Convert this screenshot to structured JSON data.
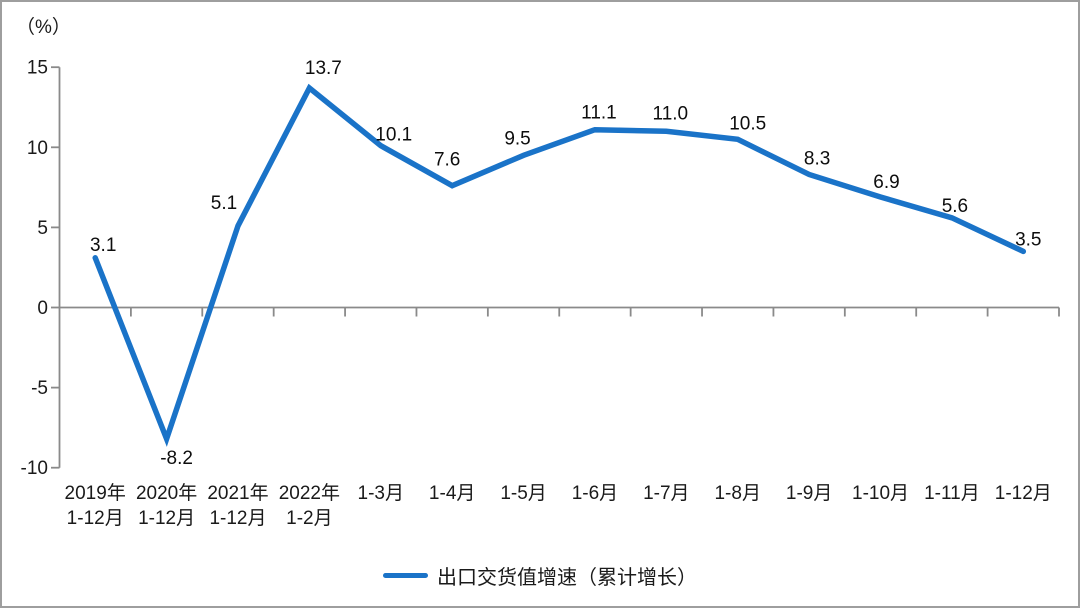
{
  "frame": {
    "background": "#ffffff",
    "border_color": "#9e9e9e"
  },
  "y_axis": {
    "unit_label": "（%）"
  },
  "legend": {
    "label": "出口交货值增速（累计增长）"
  },
  "colors": {
    "line": "#1a73c8",
    "axis": "#8a8a8a",
    "text": "#1a1a1a",
    "data_label": "#0d0d0d"
  },
  "chart_data": {
    "type": "line",
    "title": "",
    "xlabel": "",
    "ylabel": "（%）",
    "ylim": [
      -10,
      15
    ],
    "yticks": [
      15,
      10,
      5,
      0,
      -5,
      -10
    ],
    "grid": "none",
    "legend_position": "bottom",
    "categories": [
      "2019年\n1-12月",
      "2020年\n1-12月",
      "2021年\n1-12月",
      "2022年\n1-2月",
      "1-3月",
      "1-4月",
      "1-5月",
      "1-6月",
      "1-7月",
      "1-8月",
      "1-9月",
      "1-10月",
      "1-11月",
      "1-12月"
    ],
    "series": [
      {
        "name": "出口交货值增速（累计增长）",
        "values": [
          3.1,
          -8.2,
          5.1,
          13.7,
          10.1,
          7.6,
          9.5,
          11.1,
          11.0,
          10.5,
          8.3,
          6.9,
          5.6,
          3.5
        ],
        "value_labels": [
          "3.1",
          "-8.2",
          "5.1",
          "13.7",
          "10.1",
          "7.6",
          "9.5",
          "11.1",
          "11.0",
          "10.5",
          "8.3",
          "6.9",
          "5.6",
          "3.5"
        ],
        "color": "#1a73c8"
      }
    ]
  }
}
